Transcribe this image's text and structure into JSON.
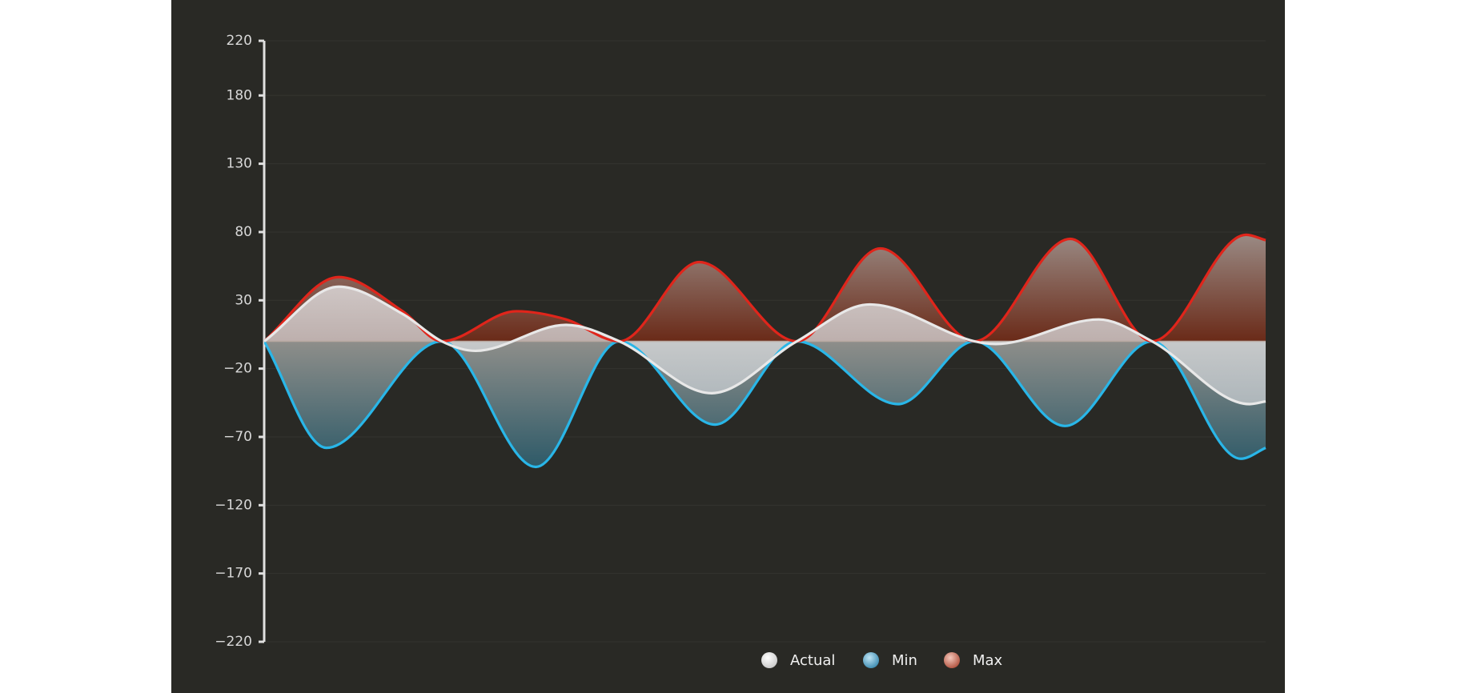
{
  "chart_data": {
    "type": "area",
    "ylim": [
      -220,
      220
    ],
    "yticks": [
      {
        "value": -220,
        "label": "−220"
      },
      {
        "value": -170,
        "label": "−170"
      },
      {
        "value": -120,
        "label": "−120"
      },
      {
        "value": -70,
        "label": "−70"
      },
      {
        "value": -20,
        "label": "−20"
      },
      30,
      80,
      130,
      180,
      220
    ],
    "xlim": [
      0,
      5.64
    ],
    "grid": true,
    "legend": "bottom",
    "series": [
      {
        "name": "Actual",
        "color": "#e8e8e8",
        "x": [
          0,
          0.42,
          0.78,
          1,
          1.19,
          1.7,
          2,
          2.52,
          3,
          3.41,
          4,
          4.12,
          4.7,
          5,
          5.55,
          5.64
        ],
        "values": [
          0,
          40,
          20,
          0,
          -7,
          12,
          0,
          -38,
          0,
          27,
          0,
          -2,
          16,
          0,
          -46,
          -44
        ]
      },
      {
        "name": "Min",
        "color": "#29b6e8",
        "x": [
          0,
          0.35,
          1,
          1.53,
          2,
          2.54,
          3,
          3.57,
          4,
          4.51,
          5,
          5.5,
          5.64
        ],
        "values": [
          0,
          -78,
          0,
          -92,
          0,
          -61,
          0,
          -46,
          0,
          -62,
          0,
          -86,
          -78
        ]
      },
      {
        "name": "Max",
        "color": "#e0251b",
        "x": [
          0,
          0.42,
          0.78,
          1,
          1.42,
          1.7,
          2,
          2.45,
          3,
          3.47,
          4,
          4.54,
          5,
          5.53,
          5.64
        ],
        "values": [
          0,
          47,
          22,
          0,
          22,
          16,
          0,
          58,
          0,
          68,
          0,
          75,
          0,
          78,
          74
        ]
      }
    ]
  }
}
